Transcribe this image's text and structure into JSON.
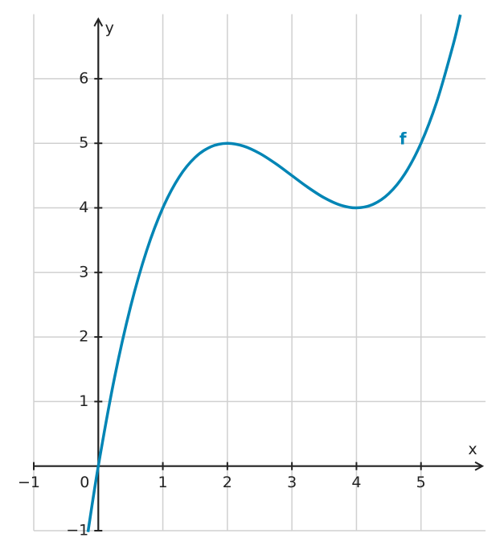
{
  "chart_data": {
    "type": "line",
    "x": [
      -0.16,
      0,
      0.25,
      0.5,
      0.75,
      1,
      1.25,
      1.5,
      1.75,
      2,
      2.25,
      2.5,
      2.75,
      3,
      3.25,
      3.5,
      3.75,
      4,
      4.25,
      4.5,
      4.75,
      5,
      5.25,
      5.5,
      5.61
    ],
    "series": [
      {
        "name": "f",
        "color": "#0085b5",
        "values": [
          -1.02,
          0,
          1.363,
          2.469,
          3.34,
          4,
          4.473,
          4.781,
          4.949,
          5,
          4.957,
          4.844,
          4.684,
          4.5,
          4.316,
          4.156,
          4.043,
          4,
          4.051,
          4.219,
          4.527,
          5,
          5.66,
          6.531,
          6.99
        ]
      }
    ],
    "xlabel": "x",
    "ylabel": "y",
    "xlim": [
      -1,
      6
    ],
    "ylim": [
      -1,
      7
    ],
    "xticks": [
      {
        "value": -1,
        "label": "−1"
      },
      0,
      1,
      2,
      3,
      4,
      5
    ],
    "yticks": [
      {
        "value": -1,
        "label": "−1"
      },
      1,
      2,
      3,
      4,
      5,
      6
    ],
    "grid": true
  }
}
